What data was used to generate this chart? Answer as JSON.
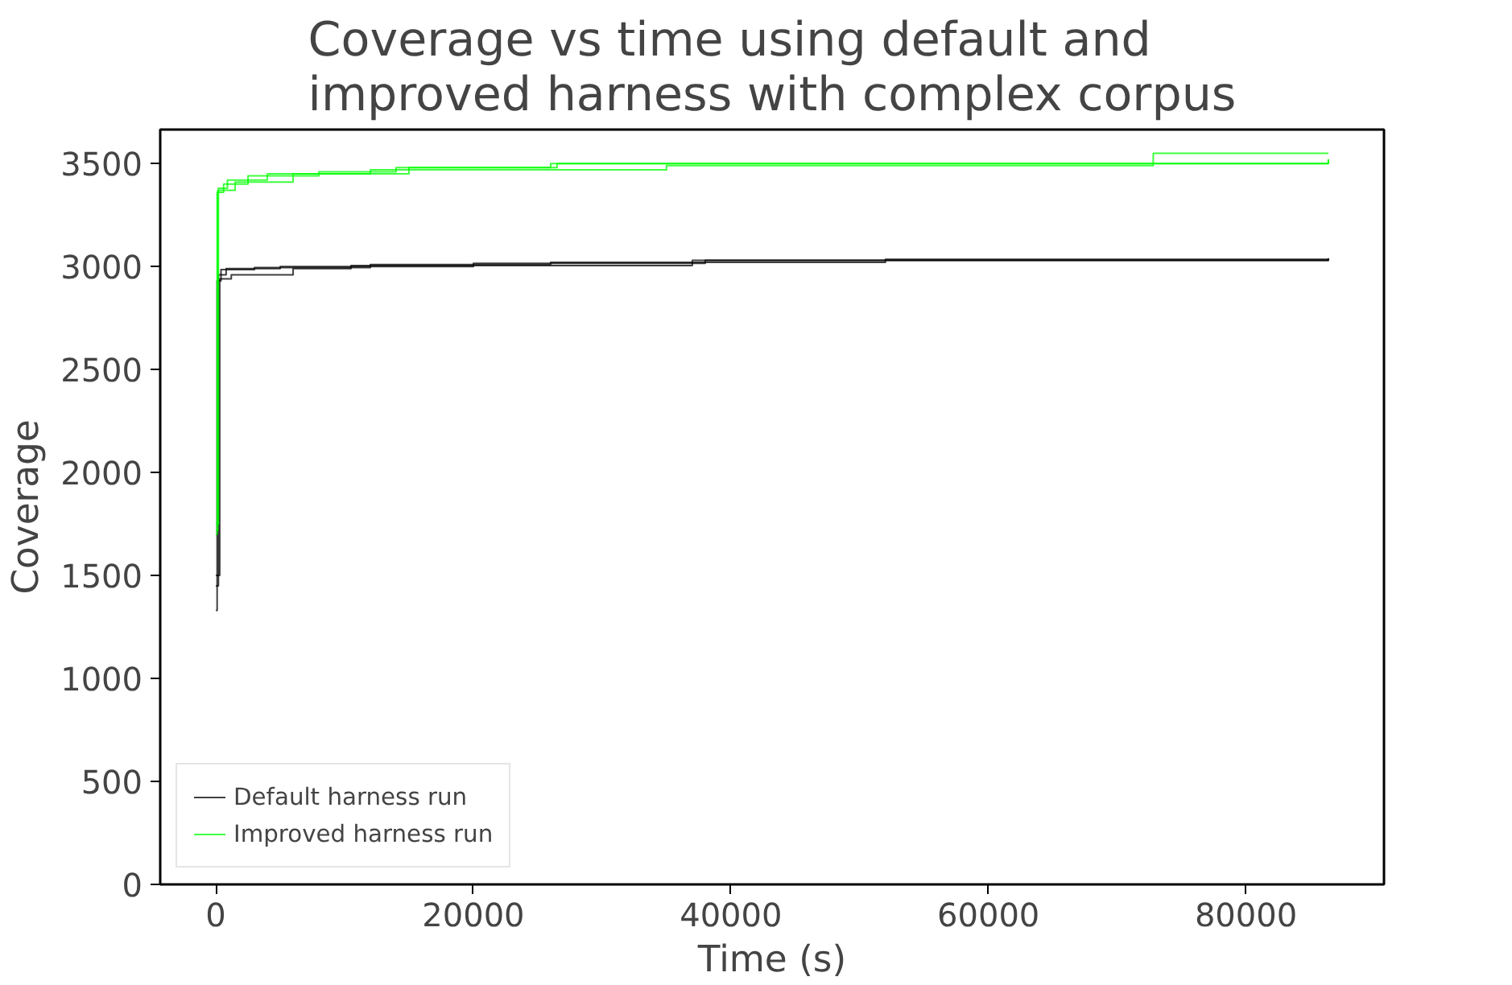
{
  "chart_data": {
    "type": "step",
    "title": "Coverage vs time using default and improved harness with complex corpus",
    "xlabel": "Time (s)",
    "ylabel": "Coverage",
    "xlim": [
      -4320,
      90720
    ],
    "ylim": [
      0,
      3665
    ],
    "xticks": [
      0,
      20000,
      40000,
      60000,
      80000
    ],
    "yticks": [
      0,
      500,
      1000,
      1500,
      2000,
      2500,
      3000,
      3500
    ],
    "grid": false,
    "legend": "bottom left",
    "series": [
      {
        "name": "Default harness run",
        "color": "#000000",
        "x": [
          0,
          100,
          400,
          3000,
          12000,
          26000,
          52000,
          86400
        ],
        "values": [
          1330,
          2930,
          2985,
          2995,
          3010,
          3020,
          3035,
          3040
        ]
      },
      {
        "color": "#000000",
        "x": [
          0,
          300,
          1200,
          6000,
          10500,
          37000,
          86400
        ],
        "values": [
          1500,
          2940,
          2960,
          2990,
          3005,
          3030,
          3040
        ]
      },
      {
        "color": "#000000",
        "x": [
          0,
          200,
          800,
          5000,
          20000,
          38000,
          86400
        ],
        "values": [
          1450,
          2960,
          2990,
          3000,
          3015,
          3030,
          3040
        ]
      },
      {
        "name": "Improved harness run",
        "color": "#00ff00",
        "x": [
          0,
          100,
          600,
          2500,
          8000,
          14000,
          26000,
          86400
        ],
        "values": [
          1700,
          3360,
          3400,
          3440,
          3460,
          3480,
          3500,
          3520
        ]
      },
      {
        "color": "#00ff00",
        "x": [
          0,
          200,
          900,
          4000,
          12000,
          35000,
          72800,
          80300,
          86400
        ],
        "values": [
          1750,
          3380,
          3420,
          3450,
          3470,
          3490,
          3550,
          3550,
          3550
        ]
      },
      {
        "color": "#00ff00",
        "x": [
          0,
          150,
          1500,
          6000,
          15000,
          26500,
          86400
        ],
        "values": [
          1720,
          3370,
          3410,
          3450,
          3480,
          3500,
          3520
        ]
      }
    ]
  }
}
